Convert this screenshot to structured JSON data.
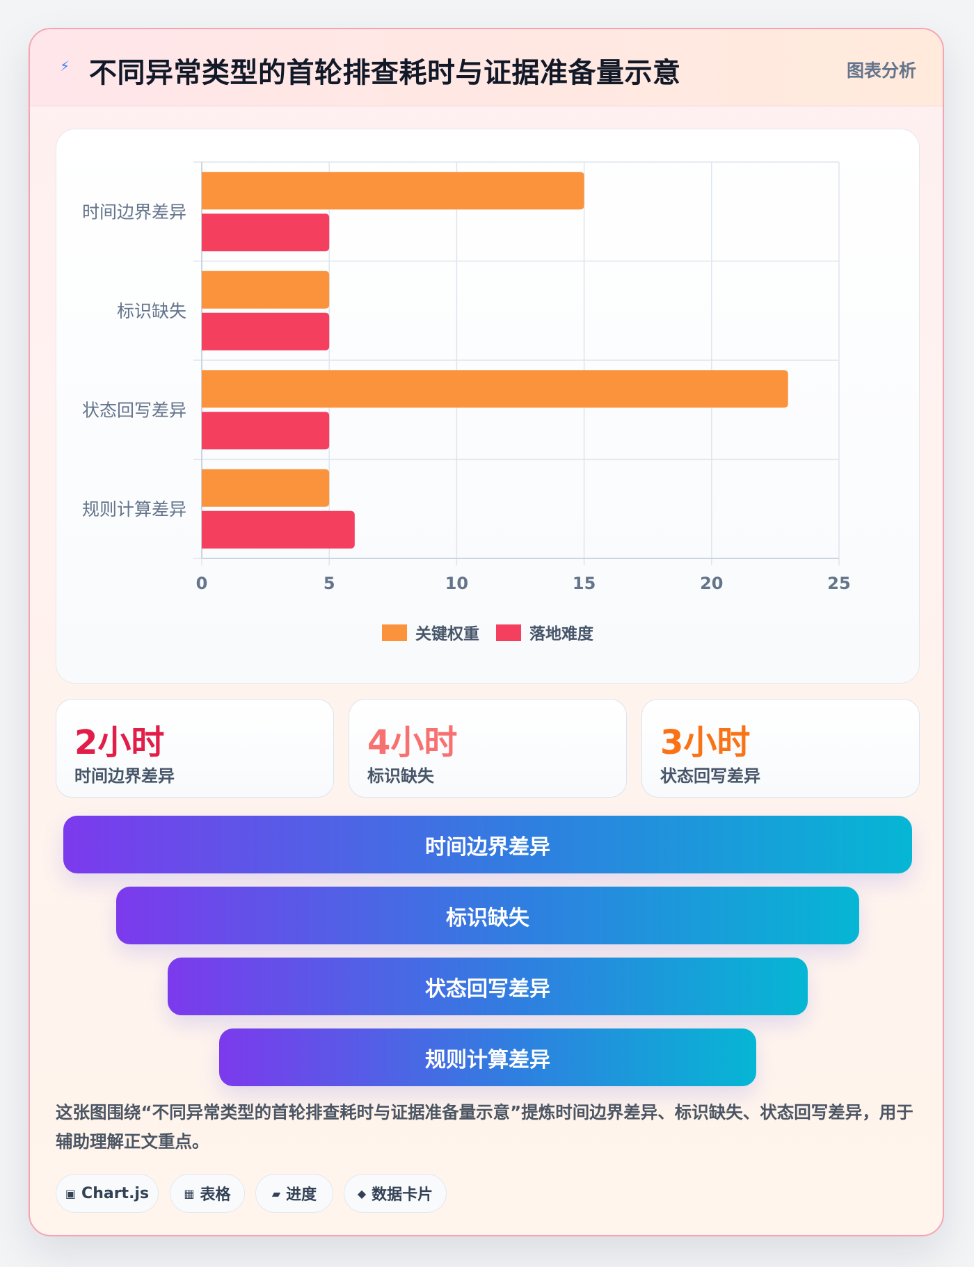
{
  "header": {
    "icon": "lightning-icon",
    "title": "不同异常类型的首轮排查耗时与证据准备量示意",
    "tag": "图表分析"
  },
  "chart_data": {
    "type": "bar",
    "orientation": "horizontal",
    "categories": [
      "时间边界差异",
      "标识缺失",
      "状态回写差异",
      "规则计算差异"
    ],
    "series": [
      {
        "name": "关键权重",
        "color": "#fb923c",
        "values": [
          15,
          5,
          23,
          5
        ]
      },
      {
        "name": "落地难度",
        "color": "#f43f5e",
        "values": [
          5,
          5,
          5,
          6
        ]
      }
    ],
    "x_ticks": [
      "0",
      "5",
      "10",
      "15",
      "20",
      "25"
    ],
    "xlim": [
      0,
      25
    ],
    "grid": true,
    "legend_position": "bottom"
  },
  "stats": [
    {
      "value": "2小时",
      "label": "时间边界差异",
      "color": "#e11d48"
    },
    {
      "value": "4小时",
      "label": "标识缺失",
      "color": "#f87171"
    },
    {
      "value": "3小时",
      "label": "状态回写差异",
      "color": "#f97316"
    }
  ],
  "funnel": [
    "时间边界差异",
    "标识缺失",
    "状态回写差异",
    "规则计算差异"
  ],
  "summary": "这张图围绕“不同异常类型的首轮排查耗时与证据准备量示意”提炼时间边界差异、标识缺失、状态回写差异，用于辅助理解正文重点。",
  "pills": [
    {
      "icon": "chart-box-icon",
      "glyph": "▣",
      "label": "Chart.js"
    },
    {
      "icon": "table-icon",
      "glyph": "▦",
      "label": "表格"
    },
    {
      "icon": "progress-icon",
      "glyph": "▰",
      "label": "进度"
    },
    {
      "icon": "diamond-icon",
      "glyph": "◆",
      "label": "数据卡片"
    }
  ]
}
